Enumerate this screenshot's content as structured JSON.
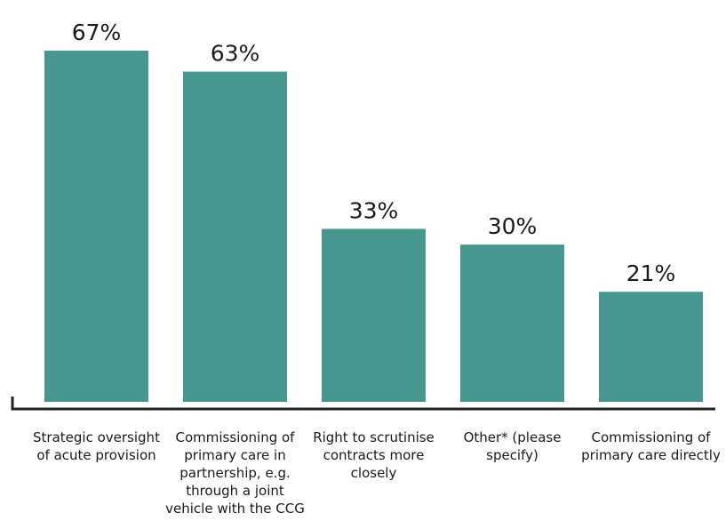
{
  "chart_data": {
    "type": "bar",
    "title": "",
    "xlabel": "",
    "ylabel": "",
    "ylim": [
      0,
      67
    ],
    "bar_color": "#45978f",
    "axis_color": "#222222",
    "grid": false,
    "categories": [
      [
        "Strategic oversight",
        "of acute provision"
      ],
      [
        "Commissioning of",
        "primary care in",
        "partnership, e.g.",
        "through a joint",
        "vehicle with the CCG"
      ],
      [
        "Right to scrutinise",
        "contracts more",
        "closely"
      ],
      [
        "Other* (please",
        "specify)"
      ],
      [
        "Commissioning of",
        "primary care directly"
      ]
    ],
    "values": [
      67,
      63,
      33,
      30,
      21
    ],
    "value_labels": [
      "67%",
      "63%",
      "33%",
      "30%",
      "21%"
    ]
  }
}
